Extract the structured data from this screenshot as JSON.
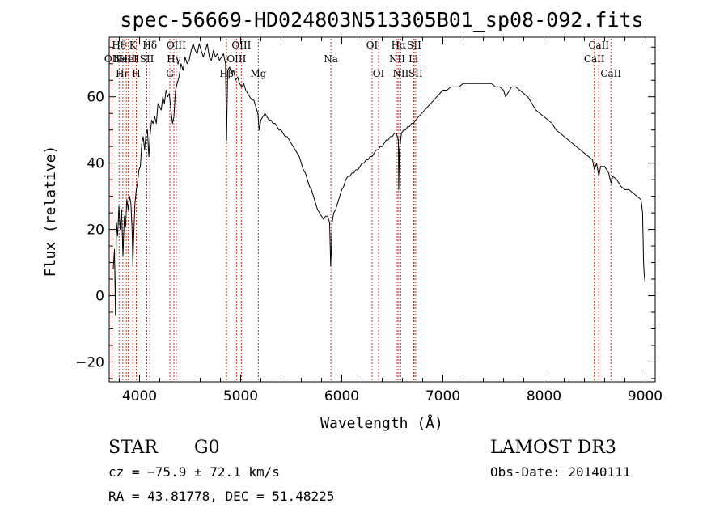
{
  "chart_data": {
    "type": "line",
    "title": "spec-56669-HD024803N513305B01_sp08-092.fits",
    "xlabel": "Wavelength (Å)",
    "ylabel": "Flux (relative)",
    "xlim": [
      3700,
      9100
    ],
    "ylim": [
      -26,
      78
    ],
    "xticks": [
      "4000",
      "5000",
      "6000",
      "7000",
      "8000",
      "9000"
    ],
    "yticks": [
      "−20",
      "0",
      "20",
      "40",
      "60"
    ],
    "series": [
      {
        "values": [
          [
            3740,
            8
          ],
          [
            3752,
            14
          ],
          [
            3762,
            -6
          ],
          [
            3772,
            22
          ],
          [
            3784,
            18
          ],
          [
            3796,
            27
          ],
          [
            3808,
            20
          ],
          [
            3822,
            26
          ],
          [
            3836,
            12
          ],
          [
            3850,
            24
          ],
          [
            3862,
            21
          ],
          [
            3874,
            29
          ],
          [
            3888,
            26
          ],
          [
            3902,
            30
          ],
          [
            3914,
            28
          ],
          [
            3926,
            20
          ],
          [
            3934,
            9
          ],
          [
            3942,
            18
          ],
          [
            3955,
            28
          ],
          [
            3968,
            32
          ],
          [
            3980,
            34
          ],
          [
            3994,
            38
          ],
          [
            4008,
            39
          ],
          [
            4022,
            46
          ],
          [
            4036,
            48
          ],
          [
            4050,
            44
          ],
          [
            4064,
            49
          ],
          [
            4078,
            50
          ],
          [
            4092,
            42
          ],
          [
            4106,
            49
          ],
          [
            4120,
            53
          ],
          [
            4134,
            52
          ],
          [
            4150,
            54
          ],
          [
            4166,
            52
          ],
          [
            4182,
            58
          ],
          [
            4198,
            57
          ],
          [
            4214,
            56
          ],
          [
            4230,
            60
          ],
          [
            4246,
            58
          ],
          [
            4262,
            62
          ],
          [
            4278,
            60
          ],
          [
            4294,
            61
          ],
          [
            4310,
            56
          ],
          [
            4326,
            52
          ],
          [
            4340,
            54
          ],
          [
            4356,
            62
          ],
          [
            4372,
            64
          ],
          [
            4390,
            66
          ],
          [
            4410,
            70
          ],
          [
            4430,
            68
          ],
          [
            4450,
            72
          ],
          [
            4470,
            70
          ],
          [
            4490,
            71
          ],
          [
            4510,
            74
          ],
          [
            4530,
            76
          ],
          [
            4550,
            74
          ],
          [
            4570,
            73
          ],
          [
            4590,
            76
          ],
          [
            4610,
            74
          ],
          [
            4630,
            72
          ],
          [
            4650,
            74
          ],
          [
            4670,
            76
          ],
          [
            4690,
            72
          ],
          [
            4710,
            71
          ],
          [
            4730,
            74
          ],
          [
            4750,
            72
          ],
          [
            4770,
            73
          ],
          [
            4790,
            71
          ],
          [
            4810,
            72
          ],
          [
            4830,
            73
          ],
          [
            4850,
            70
          ],
          [
            4861,
            47
          ],
          [
            4872,
            68
          ],
          [
            4890,
            69
          ],
          [
            4910,
            67
          ],
          [
            4930,
            68
          ],
          [
            4950,
            65
          ],
          [
            4970,
            66
          ],
          [
            4990,
            64
          ],
          [
            5010,
            63
          ],
          [
            5030,
            64
          ],
          [
            5050,
            62
          ],
          [
            5070,
            61
          ],
          [
            5090,
            60
          ],
          [
            5110,
            59
          ],
          [
            5130,
            59
          ],
          [
            5150,
            57
          ],
          [
            5170,
            55
          ],
          [
            5184,
            50
          ],
          [
            5200,
            53
          ],
          [
            5220,
            54
          ],
          [
            5240,
            55
          ],
          [
            5260,
            54
          ],
          [
            5280,
            53
          ],
          [
            5300,
            53
          ],
          [
            5320,
            52
          ],
          [
            5340,
            52
          ],
          [
            5360,
            51
          ],
          [
            5380,
            50
          ],
          [
            5400,
            50
          ],
          [
            5420,
            49
          ],
          [
            5440,
            48
          ],
          [
            5460,
            48
          ],
          [
            5480,
            47
          ],
          [
            5500,
            46
          ],
          [
            5520,
            45
          ],
          [
            5540,
            44
          ],
          [
            5560,
            43
          ],
          [
            5580,
            42
          ],
          [
            5600,
            40
          ],
          [
            5620,
            38
          ],
          [
            5640,
            37
          ],
          [
            5660,
            35
          ],
          [
            5680,
            33
          ],
          [
            5700,
            32
          ],
          [
            5720,
            30
          ],
          [
            5740,
            28
          ],
          [
            5760,
            26
          ],
          [
            5780,
            25
          ],
          [
            5800,
            24
          ],
          [
            5820,
            23
          ],
          [
            5840,
            24
          ],
          [
            5860,
            24
          ],
          [
            5880,
            22
          ],
          [
            5890,
            9
          ],
          [
            5896,
            13
          ],
          [
            5905,
            22
          ],
          [
            5920,
            25
          ],
          [
            5940,
            26
          ],
          [
            5960,
            28
          ],
          [
            5980,
            30
          ],
          [
            6000,
            32
          ],
          [
            6020,
            33
          ],
          [
            6040,
            35
          ],
          [
            6060,
            36
          ],
          [
            6080,
            36
          ],
          [
            6100,
            37
          ],
          [
            6120,
            37
          ],
          [
            6140,
            38
          ],
          [
            6160,
            38
          ],
          [
            6180,
            39
          ],
          [
            6200,
            40
          ],
          [
            6220,
            40
          ],
          [
            6240,
            41
          ],
          [
            6260,
            41
          ],
          [
            6280,
            42
          ],
          [
            6300,
            42
          ],
          [
            6320,
            43
          ],
          [
            6340,
            44
          ],
          [
            6360,
            44
          ],
          [
            6380,
            45
          ],
          [
            6400,
            45
          ],
          [
            6420,
            46
          ],
          [
            6440,
            47
          ],
          [
            6460,
            47
          ],
          [
            6480,
            48
          ],
          [
            6500,
            48
          ],
          [
            6520,
            49
          ],
          [
            6540,
            49
          ],
          [
            6560,
            47
          ],
          [
            6563,
            32
          ],
          [
            6570,
            44
          ],
          [
            6590,
            49
          ],
          [
            6610,
            50
          ],
          [
            6630,
            50
          ],
          [
            6650,
            51
          ],
          [
            6670,
            51
          ],
          [
            6690,
            52
          ],
          [
            6710,
            52
          ],
          [
            6730,
            53
          ],
          [
            6760,
            54
          ],
          [
            6790,
            55
          ],
          [
            6820,
            56
          ],
          [
            6850,
            57
          ],
          [
            6880,
            58
          ],
          [
            6910,
            59
          ],
          [
            6940,
            60
          ],
          [
            6970,
            61
          ],
          [
            7000,
            62
          ],
          [
            7040,
            62
          ],
          [
            7080,
            63
          ],
          [
            7120,
            63
          ],
          [
            7160,
            63
          ],
          [
            7200,
            64
          ],
          [
            7240,
            64
          ],
          [
            7280,
            64
          ],
          [
            7320,
            64
          ],
          [
            7360,
            64
          ],
          [
            7400,
            64
          ],
          [
            7440,
            64
          ],
          [
            7480,
            64
          ],
          [
            7520,
            63
          ],
          [
            7560,
            63
          ],
          [
            7600,
            62
          ],
          [
            7620,
            60
          ],
          [
            7640,
            61
          ],
          [
            7680,
            63
          ],
          [
            7720,
            63
          ],
          [
            7760,
            62
          ],
          [
            7800,
            61
          ],
          [
            7840,
            60
          ],
          [
            7880,
            58
          ],
          [
            7920,
            56
          ],
          [
            7960,
            55
          ],
          [
            8000,
            54
          ],
          [
            8040,
            53
          ],
          [
            8080,
            52
          ],
          [
            8120,
            50
          ],
          [
            8160,
            49
          ],
          [
            8200,
            48
          ],
          [
            8240,
            47
          ],
          [
            8280,
            46
          ],
          [
            8320,
            45
          ],
          [
            8360,
            44
          ],
          [
            8400,
            43
          ],
          [
            8440,
            42
          ],
          [
            8480,
            41
          ],
          [
            8498,
            38
          ],
          [
            8520,
            40
          ],
          [
            8542,
            36
          ],
          [
            8560,
            39
          ],
          [
            8600,
            39
          ],
          [
            8640,
            37
          ],
          [
            8662,
            34
          ],
          [
            8680,
            36
          ],
          [
            8720,
            35
          ],
          [
            8760,
            33
          ],
          [
            8800,
            32
          ],
          [
            8840,
            32
          ],
          [
            8880,
            31
          ],
          [
            8920,
            30
          ],
          [
            8960,
            29
          ],
          [
            8975,
            25
          ],
          [
            8985,
            10
          ],
          [
            8992,
            6
          ],
          [
            9000,
            4
          ]
        ]
      }
    ],
    "line_markers": [
      {
        "x": 3728,
        "label": "OII",
        "row": 1
      },
      {
        "x": 3798,
        "label": "Hθ",
        "row": 0
      },
      {
        "x": 3835,
        "label": "Hη",
        "row": 2
      },
      {
        "x": 3869,
        "label": "NeIII",
        "row": 1
      },
      {
        "x": 3889,
        "label": "HeI",
        "row": 1
      },
      {
        "x": 3934,
        "label": "K",
        "row": 0
      },
      {
        "x": 3968,
        "label": "H",
        "row": 2
      },
      {
        "x": 4072,
        "label": "SII",
        "row": 1
      },
      {
        "x": 4102,
        "label": "Hδ",
        "row": 0
      },
      {
        "x": 4300,
        "label": "G",
        "row": 2
      },
      {
        "x": 4340,
        "label": "Hγ",
        "row": 1
      },
      {
        "x": 4363,
        "label": "OIII",
        "row": 0
      },
      {
        "x": 4861,
        "label": "Hβ",
        "row": 2
      },
      {
        "x": 4959,
        "label": "OIII",
        "row": 1
      },
      {
        "x": 5007,
        "label": "OIII",
        "row": 0
      },
      {
        "x": 5175,
        "label": "Mg",
        "row": 2
      },
      {
        "x": 5893,
        "label": "Na",
        "row": 1
      },
      {
        "x": 6300,
        "label": "OI",
        "row": 0
      },
      {
        "x": 6364,
        "label": "OI",
        "row": 2
      },
      {
        "x": 6548,
        "label": "NII",
        "row": 1
      },
      {
        "x": 6563,
        "label": "Hα",
        "row": 0
      },
      {
        "x": 6583,
        "label": "NII",
        "row": 2
      },
      {
        "x": 6708,
        "label": "Li",
        "row": 1
      },
      {
        "x": 6716,
        "label": "SII",
        "row": 0
      },
      {
        "x": 6731,
        "label": "SII",
        "row": 2
      },
      {
        "x": 8498,
        "label": "CaII",
        "row": 1
      },
      {
        "x": 8542,
        "label": "CaII",
        "row": 0
      },
      {
        "x": 8662,
        "label": "CaII",
        "row": 2
      }
    ],
    "grid": false,
    "line_color": "#000000",
    "marker_color": "#c0392b"
  },
  "info": {
    "object_type": "STAR",
    "subclass": "G0",
    "survey": "LAMOST DR3",
    "cz": "cz = −75.9 ± 72.1 km/s",
    "obs_date": "Obs-Date: 20140111",
    "coords": "RA =  43.81778, DEC =  51.48225"
  }
}
